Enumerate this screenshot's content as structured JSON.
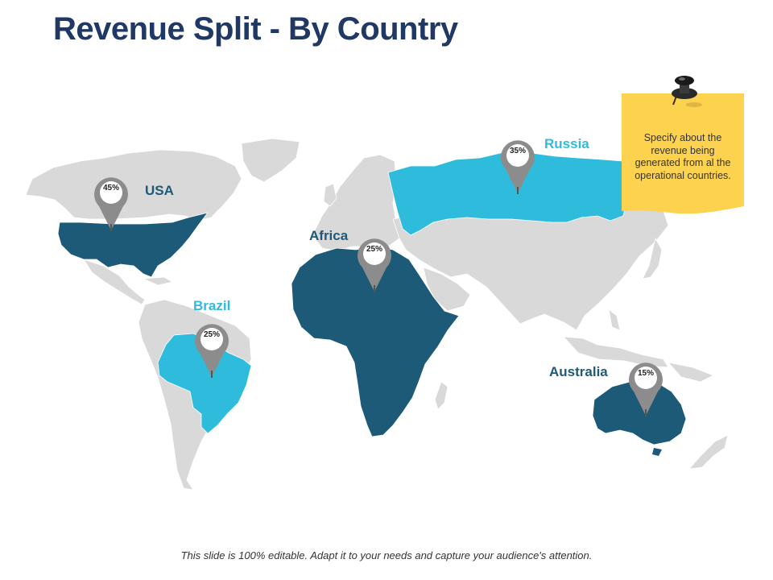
{
  "title": "Revenue Split - By Country",
  "colors": {
    "title": "#1f3864",
    "land": "#d9d9d9",
    "dark_highlight": "#1c5a78",
    "light_highlight": "#2fbcdc",
    "pin": "#8c8c8c",
    "note": "#fdd24e"
  },
  "regions": [
    {
      "id": "usa",
      "label": "USA",
      "value": "45%",
      "highlight": "dark"
    },
    {
      "id": "brazil",
      "label": "Brazil",
      "value": "25%",
      "highlight": "light"
    },
    {
      "id": "africa",
      "label": "Africa",
      "value": "25%",
      "highlight": "dark"
    },
    {
      "id": "russia",
      "label": "Russia",
      "value": "35%",
      "highlight": "light"
    },
    {
      "id": "australia",
      "label": "Australia",
      "value": "15%",
      "highlight": "dark"
    }
  ],
  "note": {
    "text": "Specify about the revenue being generated from al the operational countries.",
    "icon": "pushpin-icon"
  },
  "footer": "This slide is 100% editable.  Adapt it to your needs and capture your audience's attention."
}
